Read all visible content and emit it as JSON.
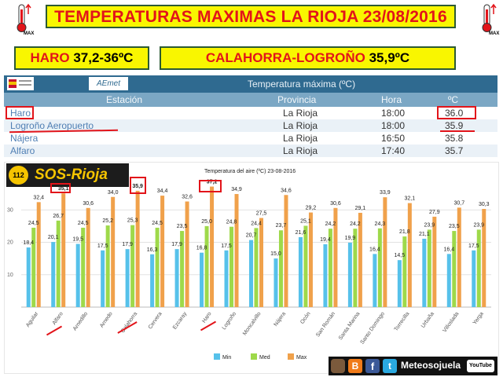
{
  "header": {
    "title": "TEMPERATURAS MAXIMAS LA RIOJA 23/08/2016",
    "therm_label": "MAX"
  },
  "highlights": {
    "haro_name": "HARO",
    "haro_value": "37,2-36ºC",
    "calahorra_name": "CALAHORRA-LOGROÑO",
    "calahorra_value": "35,9ºC"
  },
  "table": {
    "source_logo": "AEmet",
    "title": "Temperatura máxima (ºC)",
    "columns": [
      "Estación",
      "Provincia",
      "Hora",
      "ºC"
    ],
    "rows": [
      {
        "station": "Haro",
        "province": "La Rioja",
        "time": "18:00",
        "temp": "36.0"
      },
      {
        "station": "Logroño Aeropuerto",
        "province": "La Rioja",
        "time": "18:00",
        "temp": "35.9"
      },
      {
        "station": "Nájera",
        "province": "La Rioja",
        "time": "16:50",
        "temp": "35.8"
      },
      {
        "station": "Alfaro",
        "province": "La Rioja",
        "time": "17:40",
        "temp": "35.7"
      }
    ]
  },
  "sos_logo": {
    "number": "112",
    "text": "SOS-Rioja"
  },
  "chart_data": {
    "type": "bar",
    "title": "Temperatura del aire (ºC) 23-08-2016",
    "ylim": [
      0,
      40
    ],
    "yticks": [
      10,
      20,
      30
    ],
    "grid": true,
    "legend_placement": "bottom",
    "colors": {
      "Min": "#56c1ea",
      "Med": "#9ed94a",
      "Max": "#f0a14b"
    },
    "categories": [
      "Aguilar",
      "Alfaro",
      "Arnedillo",
      "Arnedo",
      "Calahorra",
      "Cervera",
      "Ezcaray",
      "Haro",
      "Logroño",
      "Moncalvillo",
      "Nájera",
      "Ocón",
      "San Román",
      "Santa Marina",
      "Santo Domingo",
      "Torrecilla",
      "Urbaña",
      "Villoslada",
      "Yerga"
    ],
    "series": [
      {
        "name": "Min",
        "values": [
          18.4,
          20.1,
          19.5,
          17.5,
          17.9,
          16.3,
          17.9,
          16.8,
          17.5,
          20.7,
          15.0,
          21.6,
          19.4,
          19.9,
          16.4,
          14.5,
          21.1,
          16.4,
          17.5
        ]
      },
      {
        "name": "Med",
        "values": [
          24.5,
          26.7,
          24.5,
          25.2,
          25.3,
          24.5,
          23.5,
          25.0,
          24.8,
          24.4,
          23.7,
          25.1,
          24.2,
          24.2,
          24.3,
          21.8,
          23.9,
          23.5,
          23.9
        ]
      },
      {
        "name": "Max",
        "values": [
          32.4,
          35.1,
          30.6,
          34.0,
          35.9,
          34.4,
          32.6,
          37.2,
          34.9,
          27.5,
          34.6,
          29.2,
          30.6,
          29.1,
          33.9,
          32.1,
          27.9,
          30.7,
          30.3
        ]
      }
    ],
    "highlighted_labels": [
      "35,1",
      "35,9",
      "37,2"
    ]
  },
  "footer": {
    "brand": "Meteosojuela",
    "youtube": "YouTube"
  }
}
